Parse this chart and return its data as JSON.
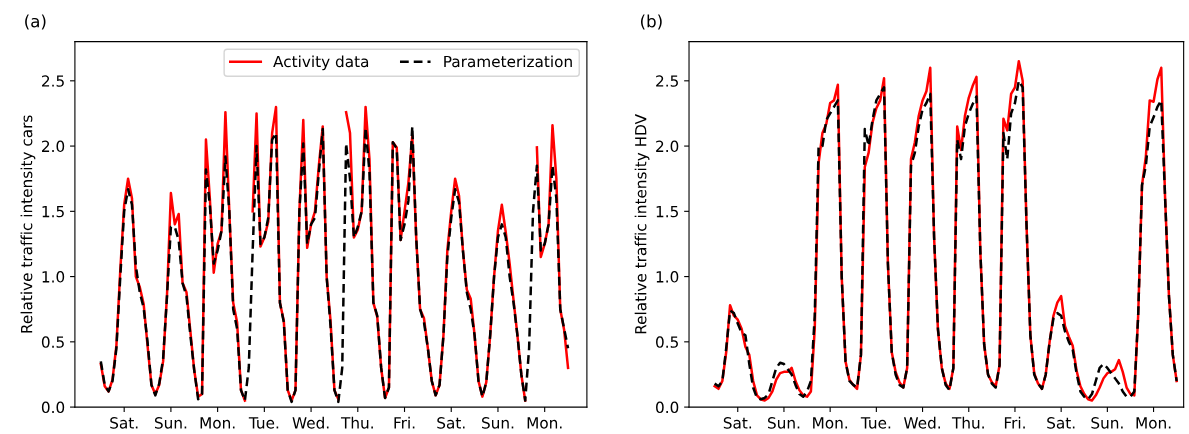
{
  "chart_data": [
    {
      "type": "line",
      "title": "(a)",
      "ylabel": "Relative traffic intensity cars",
      "ylim": [
        0,
        2.8
      ],
      "categories": [
        null,
        null,
        null,
        null,
        null,
        null,
        "Sat.",
        null,
        null,
        null,
        null,
        null,
        null,
        null,
        null,
        null,
        null,
        null,
        "Sun.",
        null,
        null,
        null,
        null,
        null,
        null,
        null,
        null,
        null,
        null,
        null,
        "Mon.",
        null,
        null,
        null,
        null,
        null,
        null,
        null,
        null,
        null,
        null,
        null,
        "Tue.",
        null,
        null,
        null,
        null,
        null,
        null,
        null,
        null,
        null,
        null,
        null,
        "Wed.",
        null,
        null,
        null,
        null,
        null,
        null,
        null,
        null,
        null,
        null,
        null,
        "Thu.",
        null,
        null,
        null,
        null,
        null,
        null,
        null,
        null,
        null,
        null,
        null,
        "Fri.",
        null,
        null,
        null,
        null,
        null,
        null,
        null,
        null,
        null,
        null,
        null,
        "Sat.",
        null,
        null,
        null,
        null,
        null,
        null,
        null,
        null,
        null,
        null,
        null,
        "Sun.",
        null,
        null,
        null,
        null,
        null,
        null,
        null,
        null,
        null,
        null,
        null,
        "Mon.",
        null,
        null,
        null,
        null,
        null,
        null
      ],
      "yticks": [
        {
          "value": 0,
          "label": "0.0"
        },
        0.5,
        {
          "value": 1,
          "label": "1.0"
        },
        1.5,
        {
          "value": 2,
          "label": "2.0"
        },
        2.5
      ],
      "grid": false,
      "legend": "top right",
      "marker": "none",
      "series": [
        {
          "name": "Activity data",
          "color": "#ff0000",
          "line_style": "solid",
          "values": [
            0.33,
            0.16,
            0.12,
            0.21,
            0.47,
            1.05,
            1.55,
            1.75,
            1.6,
            1.0,
            0.92,
            0.79,
            0.47,
            0.17,
            0.1,
            0.17,
            0.35,
            0.86,
            1.64,
            1.4,
            1.48,
            0.95,
            0.88,
            0.58,
            0.28,
            0.08,
            0.1,
            2.05,
            1.6,
            1.03,
            1.25,
            1.35,
            2.26,
            1.5,
            0.8,
            0.65,
            0.13,
            0.05,
            null,
            1.5,
            2.25,
            1.23,
            1.3,
            1.42,
            2.1,
            2.3,
            0.8,
            0.66,
            0.13,
            0.05,
            0.13,
            1.5,
            2.2,
            1.22,
            1.4,
            1.5,
            1.85,
            2.15,
            1.0,
            0.66,
            0.13,
            0.06,
            null,
            2.26,
            2.1,
            1.3,
            1.36,
            1.5,
            2.3,
            1.9,
            0.8,
            0.69,
            0.3,
            0.07,
            0.15,
            2.03,
            1.99,
            1.28,
            1.5,
            1.72,
            2.08,
            1.3,
            0.75,
            0.68,
            0.45,
            0.2,
            0.09,
            0.17,
            0.55,
            1.2,
            1.5,
            1.75,
            1.62,
            1.2,
            0.9,
            0.83,
            0.55,
            0.2,
            0.08,
            0.19,
            0.55,
            1.0,
            1.35,
            1.55,
            1.34,
            1.1,
            0.82,
            0.55,
            0.25,
            0.05,
            null,
            null,
            1.99,
            1.15,
            1.25,
            1.4,
            2.16,
            1.75,
            0.75,
            0.59,
            0.3
          ]
        },
        {
          "name": "Parameterization",
          "color": "#000000",
          "line_style": "dashed",
          "values": [
            0.35,
            0.17,
            0.12,
            0.2,
            0.45,
            1.0,
            1.5,
            1.67,
            1.55,
            1.08,
            0.88,
            0.76,
            0.5,
            0.17,
            0.09,
            0.18,
            0.37,
            0.85,
            1.38,
            1.38,
            1.28,
            0.95,
            0.85,
            0.55,
            0.28,
            0.06,
            0.1,
            1.82,
            1.55,
            1.1,
            1.2,
            1.35,
            1.92,
            1.5,
            0.75,
            0.6,
            0.13,
            0.05,
            0.3,
            1.2,
            2.0,
            1.25,
            1.3,
            1.45,
            2.05,
            2.1,
            0.8,
            0.65,
            0.13,
            0.04,
            0.13,
            1.5,
            2.02,
            1.25,
            1.4,
            1.45,
            1.8,
            2.13,
            1.0,
            0.62,
            0.13,
            0.04,
            0.3,
            2.02,
            1.75,
            1.3,
            1.38,
            1.5,
            2.14,
            1.8,
            0.8,
            0.7,
            0.3,
            0.07,
            0.15,
            2.03,
            1.98,
            1.28,
            1.4,
            1.58,
            2.15,
            1.3,
            0.75,
            0.65,
            0.45,
            0.2,
            0.09,
            0.17,
            0.55,
            1.15,
            1.45,
            1.67,
            1.57,
            1.2,
            0.88,
            0.75,
            0.55,
            0.2,
            0.08,
            0.19,
            0.55,
            1.0,
            1.3,
            1.4,
            1.3,
            1.0,
            0.8,
            0.55,
            0.25,
            0.05,
            0.45,
            1.5,
            1.85,
            1.2,
            1.25,
            1.4,
            1.85,
            1.6,
            0.75,
            0.6,
            0.45
          ]
        }
      ]
    },
    {
      "type": "line",
      "title": "(b)",
      "ylabel": "Relative traffic intensity HDV",
      "ylim": [
        0,
        2.8
      ],
      "categories": [
        null,
        null,
        null,
        null,
        null,
        null,
        "Sat.",
        null,
        null,
        null,
        null,
        null,
        null,
        null,
        null,
        null,
        null,
        null,
        "Sun.",
        null,
        null,
        null,
        null,
        null,
        null,
        null,
        null,
        null,
        null,
        null,
        "Mon.",
        null,
        null,
        null,
        null,
        null,
        null,
        null,
        null,
        null,
        null,
        null,
        "Tue.",
        null,
        null,
        null,
        null,
        null,
        null,
        null,
        null,
        null,
        null,
        null,
        "Wed.",
        null,
        null,
        null,
        null,
        null,
        null,
        null,
        null,
        null,
        null,
        null,
        "Thu.",
        null,
        null,
        null,
        null,
        null,
        null,
        null,
        null,
        null,
        null,
        null,
        "Fri.",
        null,
        null,
        null,
        null,
        null,
        null,
        null,
        null,
        null,
        null,
        null,
        "Sat.",
        null,
        null,
        null,
        null,
        null,
        null,
        null,
        null,
        null,
        null,
        null,
        "Sun.",
        null,
        null,
        null,
        null,
        null,
        null,
        null,
        null,
        null,
        null,
        null,
        "Mon.",
        null,
        null,
        null,
        null,
        null,
        null
      ],
      "yticks": [
        {
          "value": 0,
          "label": "0.0"
        },
        0.5,
        {
          "value": 1,
          "label": "1.0"
        },
        1.5,
        {
          "value": 2,
          "label": "2.0"
        },
        2.5
      ],
      "grid": false,
      "marker": "none",
      "series": [
        {
          "color": "#ff0000",
          "line_style": "solid",
          "values": [
            0.16,
            0.14,
            0.2,
            0.42,
            0.78,
            0.7,
            0.67,
            0.6,
            0.46,
            0.4,
            0.2,
            0.09,
            0.06,
            0.05,
            0.07,
            0.12,
            0.21,
            0.26,
            0.27,
            0.27,
            0.3,
            0.2,
            0.13,
            0.09,
            0.08,
            0.12,
            0.6,
            1.87,
            2.1,
            2.17,
            2.33,
            2.35,
            2.47,
            1.0,
            0.35,
            0.21,
            0.17,
            0.14,
            0.4,
            1.84,
            1.95,
            2.18,
            2.29,
            2.35,
            2.52,
            1.1,
            0.42,
            0.27,
            0.19,
            0.15,
            0.3,
            1.9,
            2.03,
            2.23,
            2.35,
            2.42,
            2.6,
            1.3,
            0.59,
            0.3,
            0.18,
            0.14,
            0.3,
            2.15,
            1.97,
            2.23,
            2.37,
            2.46,
            2.53,
            1.2,
            0.48,
            0.25,
            0.19,
            0.16,
            0.32,
            2.21,
            2.12,
            2.4,
            2.45,
            2.65,
            2.5,
            1.4,
            0.55,
            0.26,
            0.18,
            0.14,
            0.25,
            0.5,
            0.7,
            0.8,
            0.85,
            0.62,
            0.54,
            0.47,
            0.28,
            0.16,
            0.1,
            0.06,
            0.05,
            0.09,
            0.15,
            0.22,
            0.26,
            0.27,
            0.29,
            0.36,
            0.27,
            0.15,
            0.1,
            0.09,
            0.7,
            1.7,
            1.92,
            2.35,
            2.34,
            2.51,
            2.6,
            1.6,
            0.85,
            0.4,
            0.2
          ]
        },
        {
          "color": "#000000",
          "line_style": "dashed",
          "values": [
            0.18,
            0.16,
            0.2,
            0.45,
            0.74,
            0.72,
            0.64,
            0.57,
            0.55,
            0.33,
            0.15,
            0.07,
            0.06,
            0.07,
            0.1,
            0.2,
            0.3,
            0.34,
            0.33,
            0.29,
            0.25,
            0.17,
            0.1,
            0.08,
            0.12,
            0.2,
            0.7,
            2.0,
            2.0,
            2.2,
            2.25,
            2.3,
            2.35,
            1.0,
            0.35,
            0.2,
            0.17,
            0.15,
            0.4,
            2.13,
            2.0,
            2.2,
            2.35,
            2.4,
            2.45,
            1.1,
            0.42,
            0.25,
            0.17,
            0.15,
            0.3,
            1.85,
            1.95,
            2.15,
            2.28,
            2.33,
            2.4,
            1.3,
            0.6,
            0.3,
            0.17,
            0.13,
            0.3,
            2.05,
            1.9,
            2.15,
            2.25,
            2.32,
            2.38,
            1.2,
            0.48,
            0.25,
            0.18,
            0.15,
            0.32,
            2.1,
            1.9,
            2.25,
            2.33,
            2.5,
            2.45,
            1.4,
            0.55,
            0.25,
            0.18,
            0.14,
            0.25,
            0.5,
            0.68,
            0.72,
            0.7,
            0.58,
            0.5,
            0.44,
            0.26,
            0.12,
            0.08,
            0.06,
            0.1,
            0.2,
            0.3,
            0.33,
            0.3,
            0.26,
            0.22,
            0.18,
            0.12,
            0.08,
            0.08,
            0.12,
            0.7,
            1.7,
            1.85,
            2.15,
            2.22,
            2.3,
            2.35,
            1.6,
            0.85,
            0.4,
            0.2
          ]
        }
      ]
    }
  ]
}
